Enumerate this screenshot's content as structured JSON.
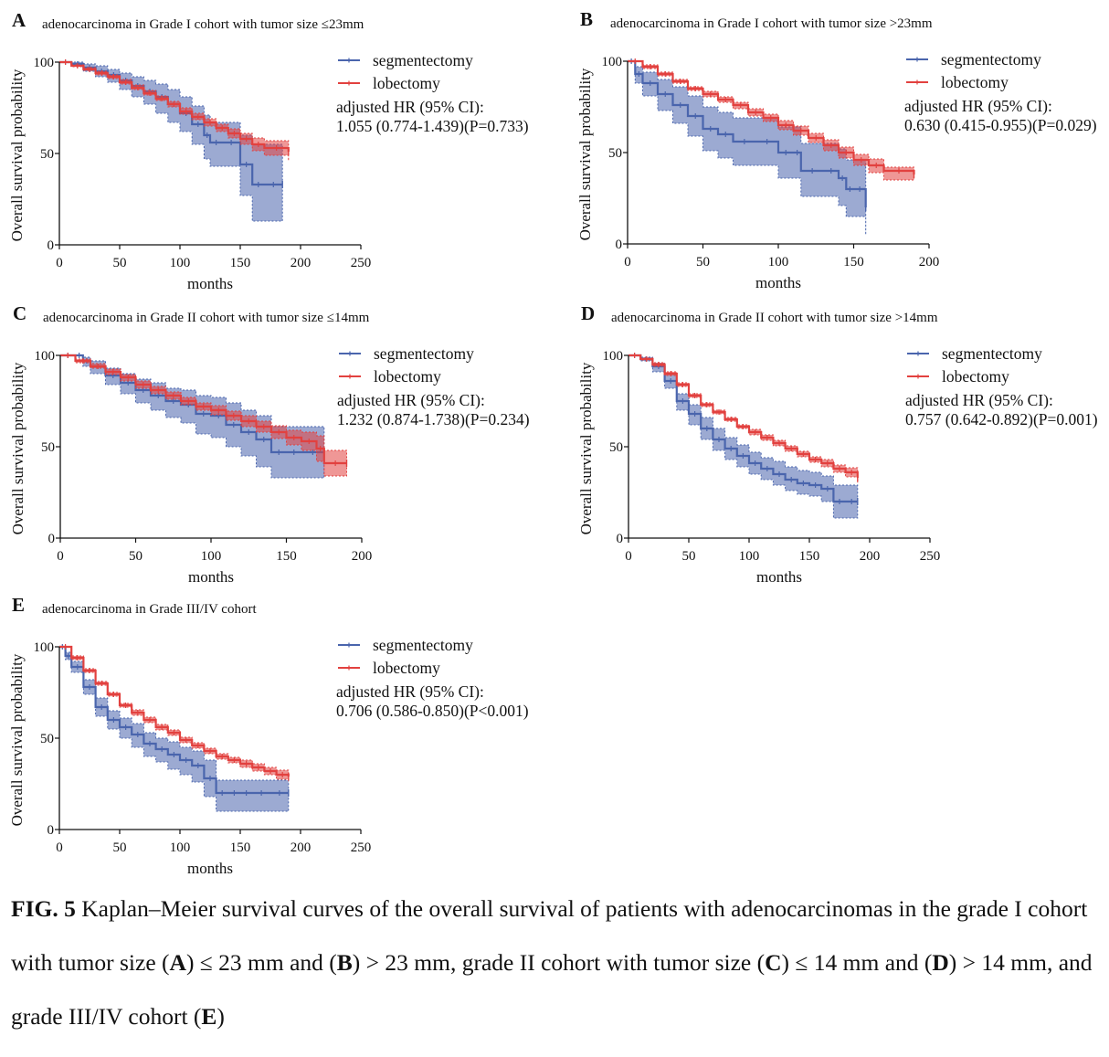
{
  "colors": {
    "segmentectomy": "#4a65ad",
    "lobectomy": "#e2413f",
    "axis": "#111111"
  },
  "caption": {
    "label": "FIG. 5",
    "s1": " Kaplan–Meier survival curves of the overall survival of patients with adenocarcinomas in the grade I cohort with tumor size (",
    "A": "A",
    "s2": ") ≤ 23 mm and (",
    "B": "B",
    "s3": ") > 23 mm, grade II cohort with tumor size (",
    "C": "C",
    "s4": ") ≤ 14 mm and (",
    "D": "D",
    "s5": ") > 14 mm, and grade III/IV cohort (",
    "E": "E",
    "s6": ")"
  },
  "chart_data": [
    {
      "panel": "A",
      "type": "line",
      "title": "adenocarcinoma in Grade I cohort with tumor size ≤23mm",
      "xlabel": "months",
      "ylabel": "Overall survival probability",
      "xlim": [
        0,
        250
      ],
      "ylim": [
        0,
        100
      ],
      "xticks": [
        0,
        50,
        100,
        150,
        200,
        250
      ],
      "yticks": [
        0,
        50,
        100
      ],
      "legend": [
        "segmentectomy",
        "lobectomy"
      ],
      "hr_label": "adjusted HR (95% CI):",
      "hr_value": "1.055 (0.774-1.439)(P=0.733)",
      "series": [
        {
          "name": "segmentectomy",
          "x": [
            0,
            10,
            20,
            30,
            40,
            50,
            60,
            70,
            80,
            90,
            100,
            110,
            120,
            125,
            135,
            150,
            160,
            170,
            185
          ],
          "y": [
            100,
            99,
            97,
            95,
            93,
            90,
            87,
            84,
            81,
            77,
            72,
            66,
            60,
            56,
            56,
            44,
            33,
            33,
            33
          ],
          "lower": [
            100,
            98,
            95,
            92,
            89,
            85,
            81,
            77,
            72,
            67,
            62,
            55,
            47,
            43,
            43,
            27,
            13,
            13,
            13
          ],
          "upper": [
            100,
            100,
            99,
            98,
            96,
            94,
            92,
            90,
            88,
            85,
            81,
            76,
            71,
            67,
            67,
            60,
            55,
            55,
            55
          ]
        },
        {
          "name": "lobectomy",
          "x": [
            0,
            10,
            20,
            30,
            40,
            50,
            60,
            70,
            80,
            90,
            100,
            110,
            120,
            130,
            140,
            150,
            160,
            170,
            190
          ],
          "y": [
            100,
            98,
            96,
            94,
            92,
            89,
            86,
            83,
            80,
            77,
            73,
            70,
            67,
            64,
            61,
            58,
            55,
            53,
            51
          ],
          "lower": [
            100,
            97.5,
            95.5,
            93,
            91,
            88,
            85,
            82,
            79,
            75.5,
            71.5,
            68.5,
            65,
            62,
            58.5,
            55,
            51.5,
            49,
            46
          ],
          "upper": [
            100,
            98.5,
            97,
            95,
            93,
            90.5,
            87.5,
            84.5,
            81.5,
            78.5,
            75,
            72,
            69,
            66,
            63.5,
            61,
            58.5,
            57,
            56
          ]
        }
      ]
    },
    {
      "panel": "B",
      "type": "line",
      "title": "adenocarcinoma in Grade I cohort with tumor size >23mm",
      "xlabel": "months",
      "ylabel": "Overall survival probability",
      "xlim": [
        0,
        200
      ],
      "ylim": [
        0,
        100
      ],
      "xticks": [
        0,
        50,
        100,
        150,
        200
      ],
      "yticks": [
        0,
        50,
        100
      ],
      "legend": [
        "segmentectomy",
        "lobectomy"
      ],
      "hr_label": "adjusted HR (95% CI):",
      "hr_value": "0.630 (0.415-0.955)(P=0.029)",
      "series": [
        {
          "name": "segmentectomy",
          "x": [
            0,
            5,
            10,
            20,
            30,
            40,
            50,
            60,
            70,
            85,
            100,
            110,
            115,
            130,
            140,
            145,
            150,
            158
          ],
          "y": [
            100,
            93,
            88,
            82,
            76,
            70,
            63,
            60,
            56,
            56,
            50,
            50,
            40,
            40,
            36,
            30,
            30,
            20
          ],
          "lower": [
            100,
            88,
            81,
            73,
            66,
            59,
            51,
            47,
            43,
            43,
            36,
            36,
            26,
            26,
            21,
            15,
            15,
            5
          ],
          "upper": [
            100,
            97,
            94,
            90,
            86,
            81,
            75,
            72,
            69,
            69,
            64,
            64,
            55,
            55,
            52,
            46,
            46,
            38
          ]
        },
        {
          "name": "lobectomy",
          "x": [
            0,
            10,
            20,
            30,
            40,
            50,
            60,
            70,
            80,
            90,
            100,
            110,
            120,
            130,
            140,
            150,
            160,
            170,
            190
          ],
          "y": [
            100,
            97,
            93,
            89,
            85,
            82,
            79,
            76,
            72,
            69,
            65,
            62,
            58,
            54,
            50,
            46,
            43,
            40,
            38
          ],
          "lower": [
            100,
            96,
            92,
            88,
            84,
            80.5,
            77.5,
            74,
            70,
            67,
            62.5,
            59.5,
            55.5,
            51,
            47,
            43,
            39,
            35,
            35
          ],
          "upper": [
            100,
            98,
            94,
            90,
            86,
            83.5,
            80.5,
            77.5,
            74,
            71,
            67.5,
            64.5,
            60.5,
            57,
            53,
            49,
            46.5,
            42,
            41
          ]
        }
      ]
    },
    {
      "panel": "C",
      "type": "line",
      "title": "adenocarcinoma in Grade II cohort with tumor size ≤14mm",
      "xlabel": "months",
      "ylabel": "Overall survival probability",
      "xlim": [
        0,
        200
      ],
      "ylim": [
        0,
        100
      ],
      "xticks": [
        0,
        50,
        100,
        150,
        200
      ],
      "yticks": [
        0,
        50,
        100
      ],
      "legend": [
        "segmentectomy",
        "lobectomy"
      ],
      "hr_label": "adjusted HR (95% CI):",
      "hr_value": "1.232 (0.874-1.738)(P=0.234)",
      "series": [
        {
          "name": "segmentectomy",
          "x": [
            0,
            10,
            15,
            20,
            30,
            40,
            50,
            60,
            70,
            80,
            90,
            100,
            110,
            120,
            130,
            140,
            150,
            160,
            175
          ],
          "y": [
            100,
            100,
            97,
            94,
            89,
            85,
            81,
            78,
            75,
            73,
            68,
            67,
            62,
            58,
            54,
            47,
            47,
            47,
            47
          ],
          "lower": [
            100,
            100,
            94,
            90,
            84,
            79,
            74,
            70,
            66,
            63,
            57,
            55,
            50,
            45,
            39,
            33,
            33,
            33,
            33
          ],
          "upper": [
            100,
            100,
            99,
            97,
            93,
            90,
            87,
            85,
            82,
            81,
            78,
            77,
            74,
            70,
            67,
            61,
            61,
            61,
            61
          ]
        },
        {
          "name": "lobectomy",
          "x": [
            0,
            10,
            20,
            30,
            40,
            50,
            60,
            70,
            80,
            90,
            100,
            110,
            120,
            130,
            140,
            150,
            160,
            170,
            175,
            190
          ],
          "y": [
            100,
            97,
            94,
            91,
            88,
            84,
            81,
            78,
            75,
            72,
            70,
            67,
            64,
            61,
            58,
            55,
            53,
            49,
            41,
            41
          ],
          "lower": [
            100,
            96,
            93,
            89.5,
            86,
            82,
            79,
            76,
            73,
            70,
            67.5,
            64.5,
            61,
            58,
            54.5,
            51,
            48,
            42,
            34,
            34
          ],
          "upper": [
            100,
            98,
            95.5,
            92.5,
            89.5,
            86,
            83,
            80,
            77,
            74,
            72.5,
            69.5,
            67,
            64,
            61.5,
            59,
            58,
            56,
            48,
            48
          ]
        }
      ]
    },
    {
      "panel": "D",
      "type": "line",
      "title": "adenocarcinoma in Grade II cohort with tumor size >14mm",
      "xlabel": "months",
      "ylabel": "Overall survival probability",
      "xlim": [
        0,
        250
      ],
      "ylim": [
        0,
        100
      ],
      "xticks": [
        0,
        50,
        100,
        150,
        200,
        250
      ],
      "yticks": [
        0,
        50,
        100
      ],
      "legend": [
        "segmentectomy",
        "lobectomy"
      ],
      "hr_label": "adjusted HR (95% CI):",
      "hr_value": "0.757 (0.642-0.892)(P=0.001)",
      "series": [
        {
          "name": "segmentectomy",
          "x": [
            0,
            10,
            20,
            30,
            40,
            50,
            60,
            70,
            80,
            90,
            100,
            110,
            120,
            130,
            140,
            150,
            160,
            170,
            180,
            190
          ],
          "y": [
            100,
            98,
            94,
            86,
            75,
            68,
            60,
            54,
            49,
            45,
            41,
            38,
            35,
            32,
            30,
            29,
            27,
            20,
            20,
            20
          ],
          "lower": [
            100,
            97,
            91,
            82,
            70,
            62,
            54,
            48,
            43,
            39,
            35,
            32,
            29,
            26,
            24,
            23,
            20,
            11,
            11,
            11
          ],
          "upper": [
            100,
            99,
            96,
            90,
            79,
            73,
            66,
            60,
            55,
            51,
            47,
            44,
            42,
            39,
            37,
            36,
            34,
            29,
            29,
            29
          ]
        },
        {
          "name": "lobectomy",
          "x": [
            0,
            10,
            20,
            30,
            40,
            50,
            60,
            70,
            80,
            90,
            100,
            110,
            120,
            130,
            140,
            150,
            160,
            170,
            180,
            190
          ],
          "y": [
            100,
            98,
            95,
            90,
            84,
            78,
            73,
            69,
            65,
            61,
            58,
            55,
            52,
            49,
            46,
            43,
            41,
            38,
            36,
            33
          ],
          "lower": [
            100,
            97.5,
            94,
            89,
            83,
            77,
            72,
            68,
            64,
            60,
            56.5,
            53.5,
            50.5,
            47.5,
            44.5,
            41.5,
            39,
            36,
            33.5,
            30
          ],
          "upper": [
            100,
            98.5,
            96,
            91,
            85,
            79,
            74,
            70,
            66,
            62,
            59.5,
            56.5,
            53.5,
            50.5,
            47.5,
            44.5,
            43,
            40,
            38.5,
            36
          ]
        }
      ]
    },
    {
      "panel": "E",
      "type": "line",
      "title": "adenocarcinoma in Grade III/IV cohort",
      "xlabel": "months",
      "ylabel": "Overall survival probability",
      "xlim": [
        0,
        250
      ],
      "ylim": [
        0,
        100
      ],
      "xticks": [
        0,
        50,
        100,
        150,
        200,
        250
      ],
      "yticks": [
        0,
        50,
        100
      ],
      "legend": [
        "segmentectomy",
        "lobectomy"
      ],
      "hr_label": "adjusted HR (95% CI):",
      "hr_value": "0.706 (0.586-0.850)(P<0.001)",
      "series": [
        {
          "name": "segmentectomy",
          "x": [
            0,
            5,
            10,
            20,
            30,
            40,
            50,
            60,
            70,
            80,
            90,
            100,
            110,
            120,
            130,
            140,
            150,
            160,
            175,
            190
          ],
          "y": [
            100,
            95,
            89,
            78,
            67,
            60,
            56,
            52,
            47,
            44,
            41,
            38,
            35,
            28,
            20,
            20,
            20,
            20,
            20,
            20
          ],
          "lower": [
            100,
            93,
            86,
            74,
            62,
            55,
            50,
            45,
            40,
            37,
            33,
            30,
            26,
            18,
            10,
            10,
            10,
            10,
            10,
            10
          ],
          "upper": [
            100,
            97,
            92,
            82,
            72,
            65,
            61,
            58,
            53,
            50,
            48,
            45,
            43,
            38,
            27,
            27,
            27,
            27,
            27,
            27
          ]
        },
        {
          "name": "lobectomy",
          "x": [
            0,
            10,
            20,
            30,
            40,
            50,
            60,
            70,
            80,
            90,
            100,
            110,
            120,
            130,
            140,
            150,
            160,
            170,
            180,
            190
          ],
          "y": [
            100,
            94,
            87,
            80,
            74,
            68,
            64,
            60,
            56,
            53,
            49,
            46,
            43,
            40,
            38,
            36,
            34,
            32,
            30,
            29
          ],
          "lower": [
            100,
            93,
            86,
            79,
            73,
            67,
            62.5,
            58.5,
            54.5,
            51.5,
            47.5,
            44.5,
            41.5,
            38.5,
            36.5,
            34,
            32,
            30,
            27.5,
            26
          ],
          "upper": [
            100,
            95,
            88,
            81,
            75,
            69,
            65.5,
            61.5,
            57.5,
            54.5,
            50.5,
            47.5,
            44.5,
            41.5,
            39.5,
            38,
            36,
            34,
            32.5,
            32
          ]
        }
      ]
    }
  ]
}
